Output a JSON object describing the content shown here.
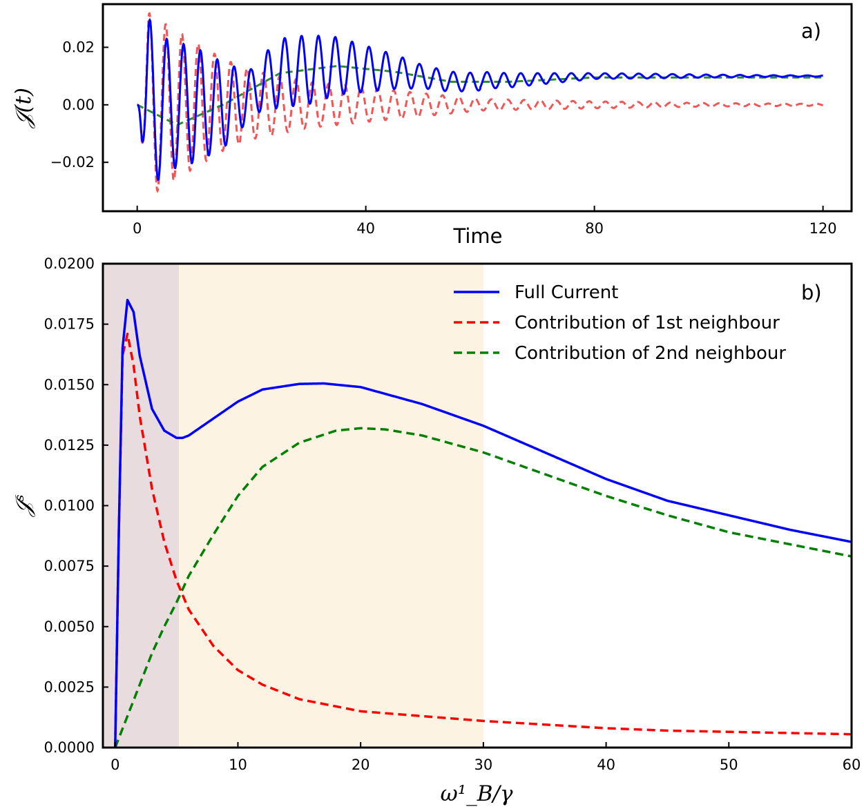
{
  "chart_data": [
    {
      "id": "a",
      "type": "line",
      "panel_label": "a)",
      "xlabel": "Time",
      "ylabel": "𝒥(t)",
      "xlim": [
        -6,
        125
      ],
      "ylim": [
        -0.037,
        0.035
      ],
      "xticks": [
        0,
        40,
        80,
        120
      ],
      "xtick_labels": [
        "0",
        "40",
        "80",
        "120"
      ],
      "yticks": [
        -0.02,
        0.0,
        0.02
      ],
      "ytick_labels": [
        "−0.02",
        "0.00",
        "0.02"
      ],
      "series": [
        {
          "name": "Full Current",
          "color": "#0000ff",
          "style": "solid",
          "description": "fast oscillation (period ~3) decaying in two beats around 0.010 offset",
          "x": [
            0,
            2,
            5,
            10,
            15,
            20,
            25,
            30,
            35,
            40,
            50,
            60,
            70,
            80,
            90,
            100,
            110,
            120
          ],
          "envelope": [
            0.0,
            0.03,
            0.023,
            0.02,
            0.015,
            0.008,
            0.012,
            0.012,
            0.01,
            0.008,
            0.004,
            0.003,
            0.002,
            0.001,
            0.0008,
            0.0005,
            0.0003,
            0.0002
          ]
        },
        {
          "name": "Contribution of 1st neighbour",
          "color": "#ef4444",
          "style": "dashed",
          "description": "fast oscillation decaying around 0.000",
          "x": [
            0,
            2,
            5,
            10,
            15,
            20,
            30,
            40,
            50,
            60,
            80,
            100,
            120
          ],
          "envelope": [
            0.0,
            0.032,
            0.028,
            0.022,
            0.016,
            0.012,
            0.008,
            0.006,
            0.004,
            0.002,
            0.0012,
            0.0006,
            0.0003
          ]
        },
        {
          "name": "Contribution of 2nd neighbour",
          "color": "#2e8b2e",
          "style": "dashed",
          "description": "slow damped oscillation settling near 0.010",
          "x": [
            0,
            7,
            15,
            25,
            35,
            45,
            55,
            65,
            80,
            100,
            120
          ],
          "values": [
            0.0,
            -0.007,
            0.0,
            0.011,
            0.0135,
            0.0115,
            0.008,
            0.008,
            0.0095,
            0.0095,
            0.0095
          ]
        }
      ]
    },
    {
      "id": "b",
      "type": "line",
      "panel_label": "b)",
      "xlabel": "ω¹_B/γ",
      "ylabel": "𝒥ˢ",
      "xlim": [
        -1,
        60
      ],
      "ylim": [
        0,
        0.02
      ],
      "xticks": [
        0,
        10,
        20,
        30,
        40,
        50,
        60
      ],
      "xtick_labels": [
        "0",
        "10",
        "20",
        "30",
        "40",
        "50",
        "60"
      ],
      "yticks": [
        0,
        0.0025,
        0.005,
        0.0075,
        0.01,
        0.0125,
        0.015,
        0.0175,
        0.02
      ],
      "ytick_labels": [
        "0.0000",
        "0.0025",
        "0.0050",
        "0.0075",
        "0.0100",
        "0.0125",
        "0.0150",
        "0.0175",
        "0.0200"
      ],
      "shaded_regions": [
        {
          "x_range": [
            -1,
            5.2
          ],
          "color": "#e9dcdf"
        },
        {
          "x_range": [
            5.2,
            30
          ],
          "color": "#fdf3e2"
        }
      ],
      "legend_position": "top-right",
      "series": [
        {
          "name": "Full Current",
          "color": "#0000ff",
          "style": "solid",
          "x": [
            0,
            0.3,
            0.6,
            1.0,
            1.5,
            2,
            3,
            4,
            5,
            5.5,
            6,
            8,
            10,
            12,
            15,
            17,
            20,
            25,
            30,
            35,
            40,
            45,
            50,
            55,
            60
          ],
          "y": [
            0.0,
            0.009,
            0.0165,
            0.0185,
            0.018,
            0.0162,
            0.014,
            0.0131,
            0.0128,
            0.0128,
            0.0129,
            0.0136,
            0.0143,
            0.0148,
            0.01503,
            0.01505,
            0.0149,
            0.0142,
            0.0133,
            0.0122,
            0.0111,
            0.0102,
            0.0096,
            0.009,
            0.0085
          ]
        },
        {
          "name": "Contribution of 1st neighbour",
          "color": "#ff0000",
          "style": "dashed",
          "x": [
            0,
            0.3,
            0.6,
            1.0,
            1.5,
            2,
            3,
            4,
            5,
            6,
            8,
            10,
            12,
            15,
            20,
            25,
            30,
            35,
            40,
            45,
            50,
            55,
            60
          ],
          "y": [
            0.0,
            0.009,
            0.0162,
            0.0171,
            0.0158,
            0.0137,
            0.0107,
            0.0085,
            0.0069,
            0.0057,
            0.0042,
            0.0032,
            0.0026,
            0.002,
            0.0015,
            0.0013,
            0.0011,
            0.00095,
            0.0008,
            0.0007,
            0.00065,
            0.0006,
            0.00055
          ]
        },
        {
          "name": "Contribution of 2nd neighbour",
          "color": "#008000",
          "style": "dashed",
          "x": [
            0,
            1,
            2,
            3,
            4,
            5,
            6,
            8,
            10,
            12,
            15,
            18,
            20,
            22,
            25,
            30,
            35,
            40,
            45,
            50,
            55,
            60
          ],
          "y": [
            0.0,
            0.0013,
            0.0026,
            0.0039,
            0.005,
            0.006,
            0.0071,
            0.0088,
            0.0104,
            0.0116,
            0.0126,
            0.0131,
            0.0132,
            0.01315,
            0.0129,
            0.0122,
            0.0113,
            0.0104,
            0.0096,
            0.0089,
            0.0084,
            0.0079
          ]
        }
      ]
    }
  ]
}
